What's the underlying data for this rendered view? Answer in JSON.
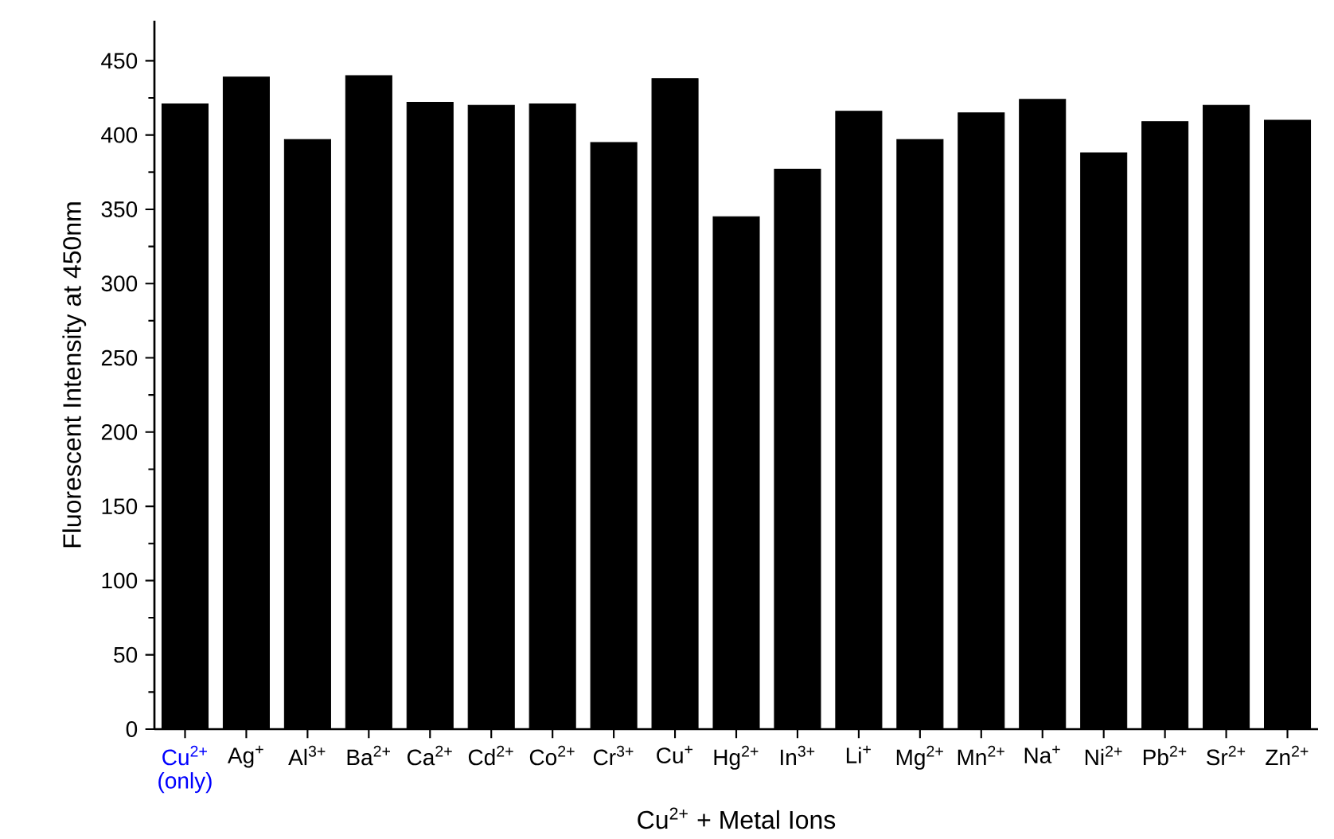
{
  "chart_data": {
    "type": "bar",
    "xlabel": "Cu$^{2+}$ + Metal Ions",
    "ylabel": "Fluorescent Intensity at 450nm",
    "categories": [
      "Cu$^{2+}$ (only)",
      "Ag$^{+}$",
      "Al$^{3+}$",
      "Ba$^{2+}$",
      "Ca$^{2+}$",
      "Cd$^{2+}$",
      "Co$^{2+}$",
      "Cr$^{3+}$",
      "Cu$^{+}$",
      "Hg$^{2+}$",
      "In$^{3+}$",
      "Li$^{+}$",
      "Mg$^{2+}$",
      "Mn$^{2+}$",
      "Na$^{+}$",
      "Ni$^{2+}$",
      "Pb$^{2+}$",
      "Sr$^{2+}$",
      "Zn$^{2+}$"
    ],
    "values": [
      421,
      439,
      397,
      440,
      422,
      420,
      421,
      395,
      438,
      345,
      377,
      416,
      397,
      415,
      424,
      388,
      409,
      420,
      410
    ],
    "color": "#000000",
    "ylim": [
      0,
      477
    ],
    "yticks": [
      0,
      50,
      100,
      150,
      200,
      250,
      300,
      350,
      400,
      450
    ]
  }
}
